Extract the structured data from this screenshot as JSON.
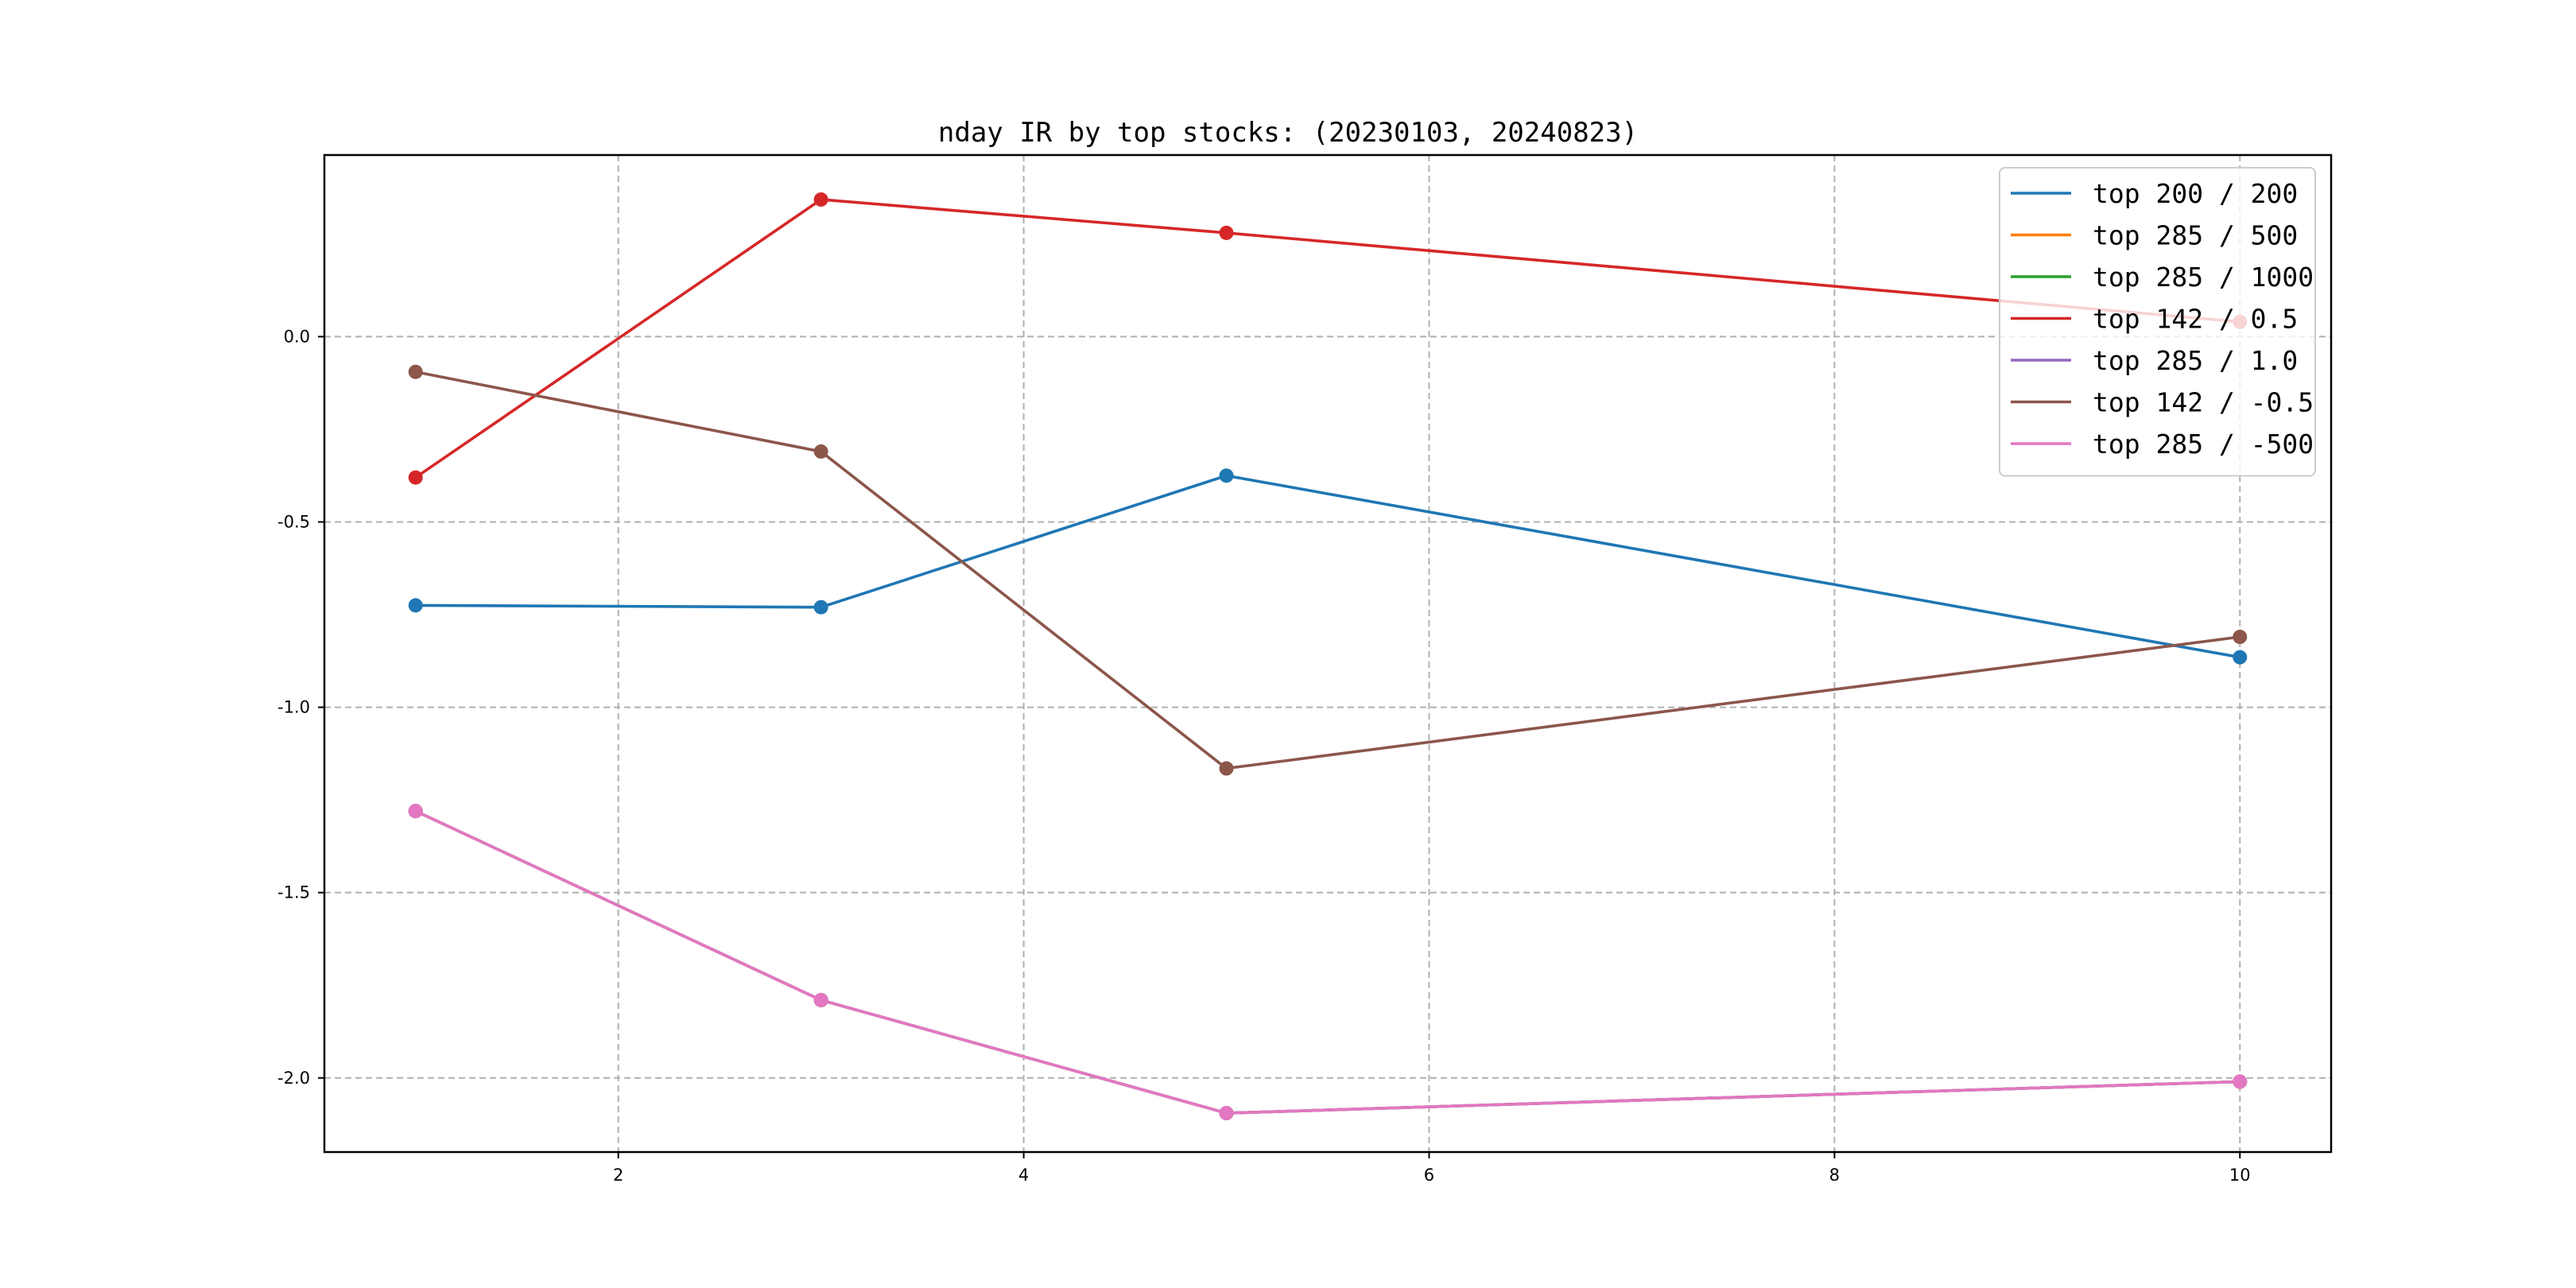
{
  "chart_data": {
    "type": "line",
    "title": "nday IR by top stocks: (20230103, 20240823)",
    "xlabel": "",
    "ylabel": "",
    "xlim": [
      0.55,
      10.45
    ],
    "ylim": [
      -2.2,
      0.49
    ],
    "xticks": [
      2,
      4,
      6,
      8,
      10
    ],
    "yticks": [
      0.0,
      -0.5,
      -1.0,
      -1.5,
      -2.0
    ],
    "xtick_labels": [
      "2",
      "4",
      "6",
      "8",
      "10"
    ],
    "ytick_labels": [
      "0.0",
      "-0.5",
      "-1.0",
      "-1.5",
      "-2.0"
    ],
    "grid": true,
    "legend_position": "top-right",
    "x": [
      1,
      3,
      5,
      10
    ],
    "series": [
      {
        "name": "top 200 / 200",
        "color": "#1f77b4",
        "values": [
          -0.725,
          -0.73,
          -0.375,
          -0.865
        ]
      },
      {
        "name": "top 285 / 500",
        "color": "#ff7f0e",
        "values": [
          -1.28,
          -1.79,
          -2.095,
          -2.01
        ]
      },
      {
        "name": "top 285 / 1000",
        "color": "#2ca02c",
        "values": [
          -1.28,
          -1.79,
          -2.095,
          -2.01
        ]
      },
      {
        "name": "top 142 / 0.5",
        "color": "#d62728",
        "values": [
          -0.38,
          0.37,
          0.28,
          0.04
        ]
      },
      {
        "name": "top 285 / 1.0",
        "color": "#9467bd",
        "values": [
          -1.28,
          -1.79,
          -2.095,
          -2.01
        ]
      },
      {
        "name": "top 142 / -0.5",
        "color": "#8c564b",
        "values": [
          -0.095,
          -0.31,
          -1.165,
          -0.81
        ]
      },
      {
        "name": "top 285 / -500",
        "color": "#e377c2",
        "values": [
          -1.28,
          -1.79,
          -2.095,
          -2.01
        ]
      }
    ]
  }
}
